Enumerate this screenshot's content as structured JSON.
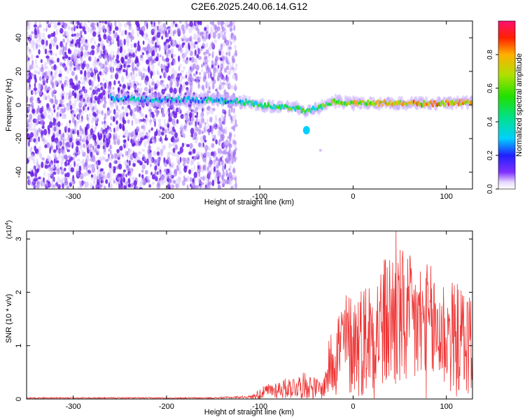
{
  "title": "C2E6.2025.240.06.14.G12",
  "chart_data": [
    {
      "type": "heatmap",
      "title": "C2E6.2025.240.06.14.G12",
      "xlabel": "Height of straight line (km)",
      "ylabel": "Frequency (Hz)",
      "xlim": [
        -350,
        128
      ],
      "ylim": [
        -50,
        50
      ],
      "xticks": [
        -300,
        -200,
        -100,
        0,
        100
      ],
      "yticks": [
        -40,
        -20,
        0,
        20,
        40
      ],
      "xtick_labels": [
        "-300",
        "-200",
        "-100",
        "0",
        "100"
      ],
      "ytick_labels": [
        "-40",
        "-20",
        "0",
        "20",
        "40"
      ],
      "colorbar": {
        "label": "Normalized spectral amplitude",
        "range": [
          0,
          1
        ],
        "ticks": [
          0.0,
          0.2,
          0.4,
          0.6,
          0.8
        ],
        "tick_labels": [
          "0.0",
          "0.2",
          "0.4",
          "0.6",
          "0.8"
        ]
      },
      "noise_region_x": [
        -350,
        -125
      ],
      "signal_track": {
        "x": [
          -260,
          -200,
          -150,
          -120,
          -100,
          -80,
          -60,
          -50,
          -40,
          -30,
          -20,
          0,
          50,
          100,
          128
        ],
        "frequency": [
          4,
          3,
          3,
          2,
          0,
          -1,
          -2,
          -4,
          -2,
          0,
          2,
          1,
          1,
          1,
          2
        ],
        "amplitude": [
          0.3,
          0.25,
          0.3,
          0.35,
          0.45,
          0.5,
          0.5,
          0.5,
          0.45,
          0.55,
          0.6,
          0.65,
          0.7,
          0.75,
          0.7
        ]
      },
      "features": [
        {
          "x": -50,
          "frequency": -15,
          "amplitude": 0.3
        },
        {
          "x": -35,
          "frequency": -27,
          "amplitude": 0.05
        }
      ]
    },
    {
      "type": "line",
      "xlabel": "Height of straight line (km)",
      "ylabel": "SNR (10 * v/v)",
      "y_multiplier_label": "(x10",
      "y_multiplier_exponent": "4",
      "y_multiplier_suffix": ")",
      "xlim": [
        -350,
        128
      ],
      "ylim": [
        0,
        3.15
      ],
      "xticks": [
        -300,
        -200,
        -100,
        0,
        100
      ],
      "yticks": [
        0,
        1,
        2,
        3
      ],
      "xtick_labels": [
        "-300",
        "-200",
        "-100",
        "0",
        "100"
      ],
      "ytick_labels": [
        "0",
        "1",
        "2",
        "3"
      ],
      "series": [
        {
          "name": "SNR",
          "color": "#ee3333",
          "envelope": {
            "x": [
              -350,
              -150,
              -110,
              -100,
              -90,
              -70,
              -50,
              -40,
              -32,
              -25,
              -20,
              -10,
              0,
              20,
              45,
              60,
              80,
              100,
              128
            ],
            "y": [
              0.02,
              0.02,
              0.04,
              0.15,
              0.22,
              0.3,
              0.38,
              0.3,
              0.25,
              0.9,
              1.2,
              1.5,
              1.5,
              1.75,
              2.2,
              2.0,
              1.9,
              1.7,
              1.5
            ]
          },
          "peak": {
            "x": 46,
            "y": 3.15
          }
        }
      ]
    }
  ],
  "colors": {
    "line": "#ee3333",
    "noise": "#7a2fe0",
    "axis": "#000000"
  }
}
